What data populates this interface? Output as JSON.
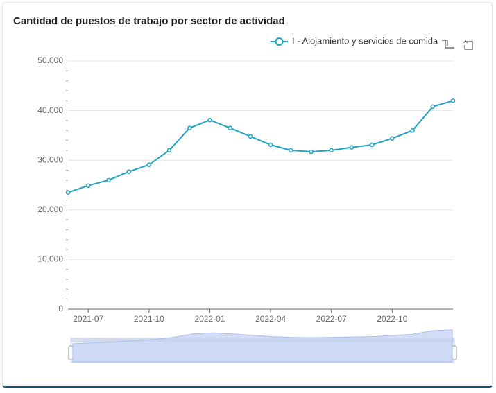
{
  "chart_data": {
    "type": "line",
    "title": "Cantidad de puestos de trabajo por sector de actividad",
    "categories": [
      null,
      "2021-07",
      null,
      null,
      "2021-10",
      null,
      null,
      "2022-01",
      null,
      null,
      "2022-04",
      null,
      null,
      "2022-07",
      null,
      null,
      "2022-10",
      null,
      null,
      null
    ],
    "series": [
      {
        "name": "I - Alojamiento y servicios de comida",
        "color": "#1fa3c2",
        "values": [
          23500,
          24900,
          26000,
          27700,
          29100,
          32000,
          36500,
          38100,
          36500,
          34800,
          33100,
          32000,
          31700,
          32000,
          32600,
          33100,
          34400,
          36000,
          40800,
          42000
        ]
      }
    ],
    "ylim": [
      0,
      50000
    ],
    "yticks": [
      0,
      {
        "value": 10000,
        "label": "10.000"
      },
      {
        "value": 20000,
        "label": "20.000"
      },
      {
        "value": 30000,
        "label": "30.000"
      },
      {
        "value": 40000,
        "label": "40.000"
      },
      {
        "value": 50000,
        "label": "50.000"
      }
    ],
    "grid": true
  }
}
